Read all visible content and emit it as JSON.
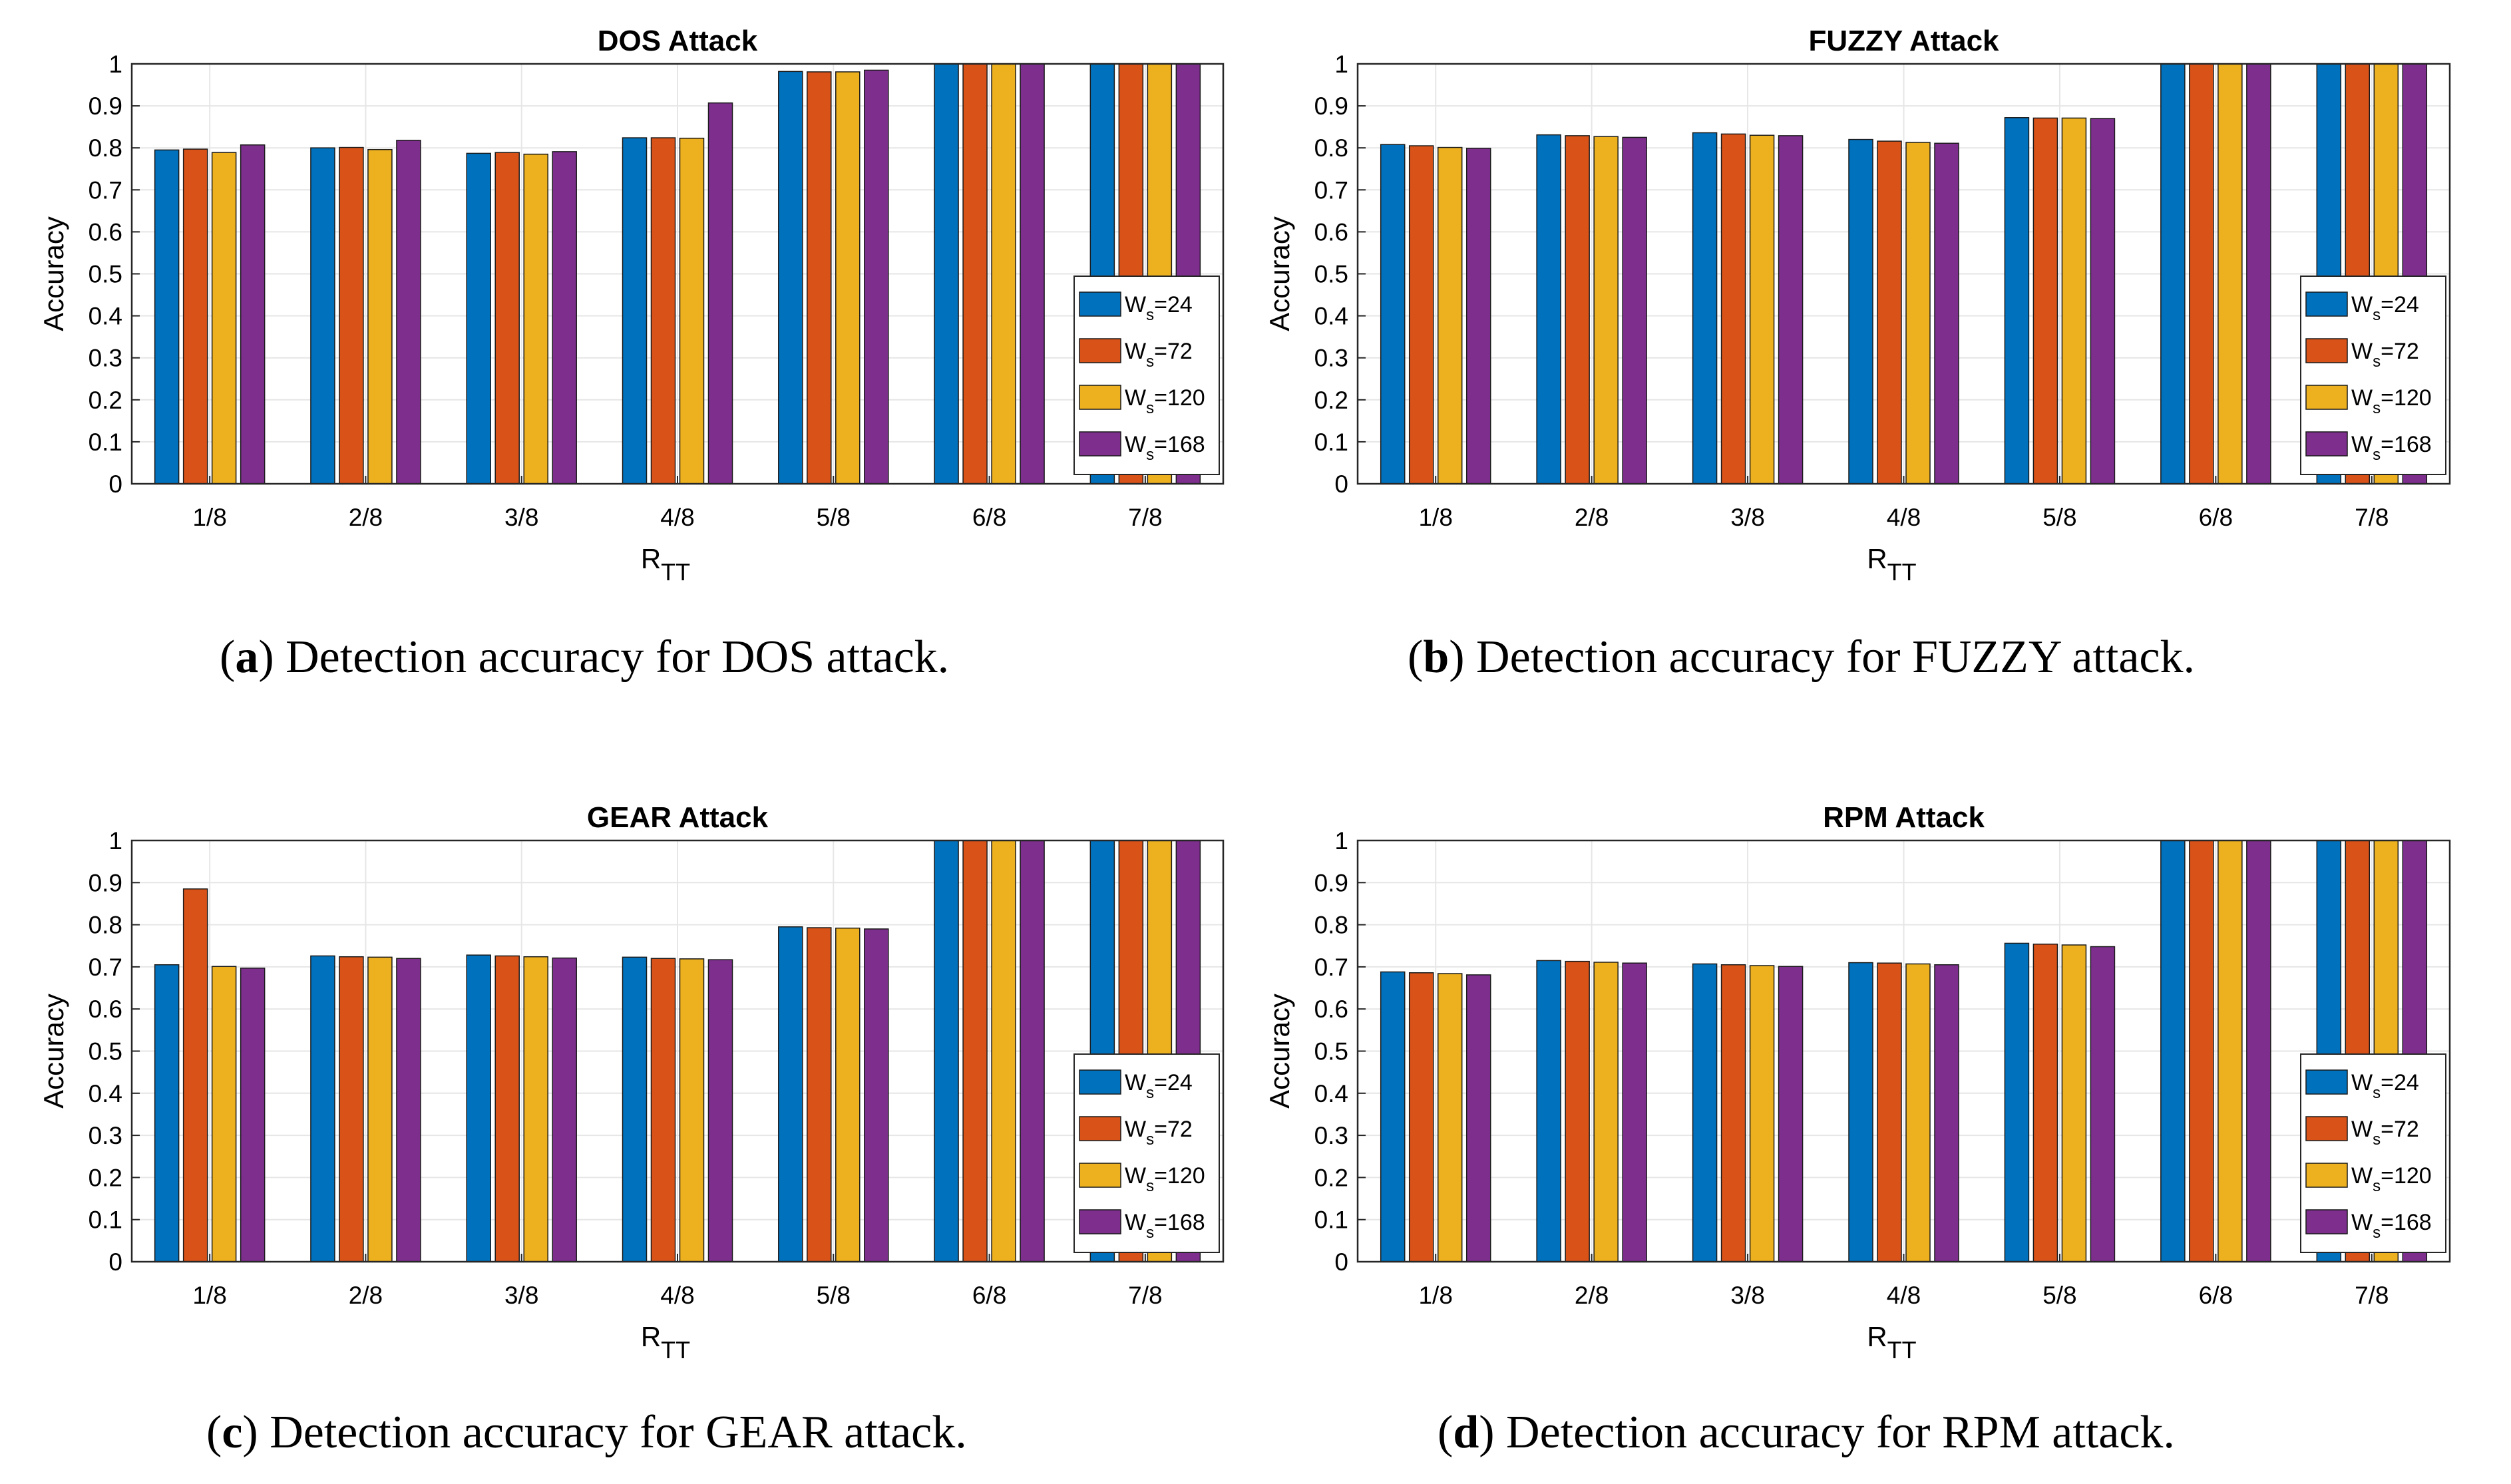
{
  "chart_data": [
    {
      "type": "bar",
      "title": "DOS Attack",
      "xlabel": "R",
      "xlabel_sub": "TT",
      "ylabel": "Accuracy",
      "ylim": [
        0,
        1
      ],
      "yticks": [
        "0",
        "0.1",
        "0.2",
        "0.3",
        "0.4",
        "0.5",
        "0.6",
        "0.7",
        "0.8",
        "0.9",
        "1"
      ],
      "categories": [
        "1/8",
        "2/8",
        "3/8",
        "4/8",
        "5/8",
        "6/8",
        "7/8"
      ],
      "series": [
        {
          "name": "W_s=24",
          "values": [
            0.795,
            0.8,
            0.787,
            0.824,
            0.982,
            1.0,
            1.0
          ]
        },
        {
          "name": "W_s=72",
          "values": [
            0.797,
            0.801,
            0.789,
            0.824,
            0.981,
            1.0,
            1.0
          ]
        },
        {
          "name": "W_s=120",
          "values": [
            0.789,
            0.796,
            0.785,
            0.823,
            0.981,
            1.0,
            1.0
          ]
        },
        {
          "name": "W_s=168",
          "values": [
            0.807,
            0.818,
            0.791,
            0.907,
            0.985,
            1.0,
            1.0
          ]
        }
      ],
      "legend_position": "bottom-right",
      "caption_letter": "a",
      "caption_text": ") Detection accuracy for DOS attack."
    },
    {
      "type": "bar",
      "title": "FUZZY Attack",
      "xlabel": "R",
      "xlabel_sub": "TT",
      "ylabel": "Accuracy",
      "ylim": [
        0,
        1
      ],
      "yticks": [
        "0",
        "0.1",
        "0.2",
        "0.3",
        "0.4",
        "0.5",
        "0.6",
        "0.7",
        "0.8",
        "0.9",
        "1"
      ],
      "categories": [
        "1/8",
        "2/8",
        "3/8",
        "4/8",
        "5/8",
        "6/8",
        "7/8"
      ],
      "series": [
        {
          "name": "W_s=24",
          "values": [
            0.808,
            0.831,
            0.836,
            0.82,
            0.872,
            1.0,
            1.0
          ]
        },
        {
          "name": "W_s=72",
          "values": [
            0.805,
            0.829,
            0.833,
            0.816,
            0.871,
            1.0,
            1.0
          ]
        },
        {
          "name": "W_s=120",
          "values": [
            0.801,
            0.827,
            0.83,
            0.813,
            0.871,
            1.0,
            1.0
          ]
        },
        {
          "name": "W_s=168",
          "values": [
            0.799,
            0.825,
            0.829,
            0.811,
            0.87,
            1.0,
            1.0
          ]
        }
      ],
      "legend_position": "bottom-right",
      "caption_letter": "b",
      "caption_text": ") Detection accuracy for FUZZY attack."
    },
    {
      "type": "bar",
      "title": "GEAR Attack",
      "xlabel": "R",
      "xlabel_sub": "TT",
      "ylabel": "Accuracy",
      "ylim": [
        0,
        1
      ],
      "yticks": [
        "0",
        "0.1",
        "0.2",
        "0.3",
        "0.4",
        "0.5",
        "0.6",
        "0.7",
        "0.8",
        "0.9",
        "1"
      ],
      "categories": [
        "1/8",
        "2/8",
        "3/8",
        "4/8",
        "5/8",
        "6/8",
        "7/8"
      ],
      "series": [
        {
          "name": "W_s=24",
          "values": [
            0.705,
            0.726,
            0.728,
            0.723,
            0.795,
            1.0,
            1.0
          ]
        },
        {
          "name": "W_s=72",
          "values": [
            0.885,
            0.724,
            0.726,
            0.72,
            0.793,
            1.0,
            1.0
          ]
        },
        {
          "name": "W_s=120",
          "values": [
            0.701,
            0.723,
            0.724,
            0.719,
            0.792,
            1.0,
            1.0
          ]
        },
        {
          "name": "W_s=168",
          "values": [
            0.697,
            0.72,
            0.721,
            0.717,
            0.79,
            1.0,
            1.0
          ]
        }
      ],
      "legend_position": "bottom-right",
      "caption_letter": "c",
      "caption_text": ") Detection accuracy for GEAR attack."
    },
    {
      "type": "bar",
      "title": "RPM Attack",
      "xlabel": "R",
      "xlabel_sub": "TT",
      "ylabel": "Accuracy",
      "ylim": [
        0,
        1
      ],
      "yticks": [
        "0",
        "0.1",
        "0.2",
        "0.3",
        "0.4",
        "0.5",
        "0.6",
        "0.7",
        "0.8",
        "0.9",
        "1"
      ],
      "categories": [
        "1/8",
        "2/8",
        "3/8",
        "4/8",
        "5/8",
        "6/8",
        "7/8"
      ],
      "series": [
        {
          "name": "W_s=24",
          "values": [
            0.688,
            0.715,
            0.707,
            0.71,
            0.756,
            1.0,
            1.0
          ]
        },
        {
          "name": "W_s=72",
          "values": [
            0.686,
            0.713,
            0.705,
            0.709,
            0.754,
            1.0,
            1.0
          ]
        },
        {
          "name": "W_s=120",
          "values": [
            0.684,
            0.711,
            0.703,
            0.707,
            0.752,
            1.0,
            1.0
          ]
        },
        {
          "name": "W_s=168",
          "values": [
            0.681,
            0.709,
            0.701,
            0.705,
            0.748,
            1.0,
            1.0
          ]
        }
      ],
      "legend_position": "bottom-right",
      "caption_letter": "d",
      "caption_text": ") Detection accuracy for RPM attack."
    }
  ],
  "legend": [
    {
      "main": "W",
      "sub": "s",
      "rest": "=24"
    },
    {
      "main": "W",
      "sub": "s",
      "rest": "=72"
    },
    {
      "main": "W",
      "sub": "s",
      "rest": "=120"
    },
    {
      "main": "W",
      "sub": "s",
      "rest": "=168"
    }
  ],
  "colors": {
    "series": [
      "#0072BD",
      "#D95319",
      "#EDB120",
      "#7E2F8E"
    ],
    "grid": "#e6e6e6",
    "axis": "#262626",
    "bar_edge": "#1a1a1a"
  }
}
